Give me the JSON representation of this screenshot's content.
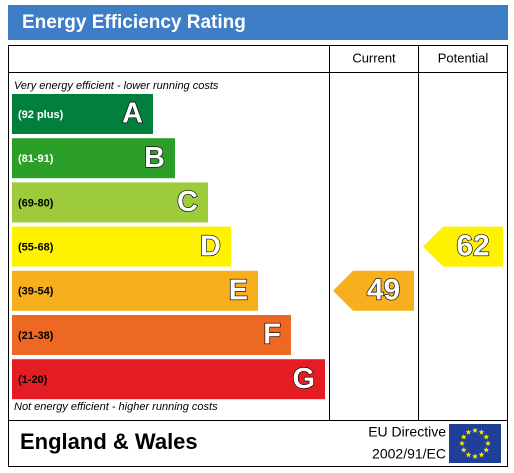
{
  "header": {
    "title": "Energy Efficiency Rating"
  },
  "columns": {
    "current": "Current",
    "potential": "Potential"
  },
  "top_note": "Very energy efficient - lower running costs",
  "bottom_note": "Not energy efficient - higher running costs",
  "bands": [
    {
      "range": "(92 plus)",
      "letter": "A",
      "color": "#007f3d",
      "text_color": "#ffffff"
    },
    {
      "range": "(81-91)",
      "letter": "B",
      "color": "#2c9f29",
      "text_color": "#ffffff"
    },
    {
      "range": "(69-80)",
      "letter": "C",
      "color": "#9dcb3c",
      "text_color": "#000000"
    },
    {
      "range": "(55-68)",
      "letter": "D",
      "color": "#fff200",
      "text_color": "#000000"
    },
    {
      "range": "(39-54)",
      "letter": "E",
      "color": "#f7af1d",
      "text_color": "#000000"
    },
    {
      "range": "(21-38)",
      "letter": "F",
      "color": "#ed6823",
      "text_color": "#000000"
    },
    {
      "range": "(1-20)",
      "letter": "G",
      "color": "#e31d23",
      "text_color": "#000000"
    }
  ],
  "current": {
    "value": 49,
    "label": "49"
  },
  "potential": {
    "value": 62,
    "label": "62"
  },
  "footer": {
    "region": "England & Wales",
    "directive_line1": "EU Directive",
    "directive_line2": "2002/91/EC"
  }
}
